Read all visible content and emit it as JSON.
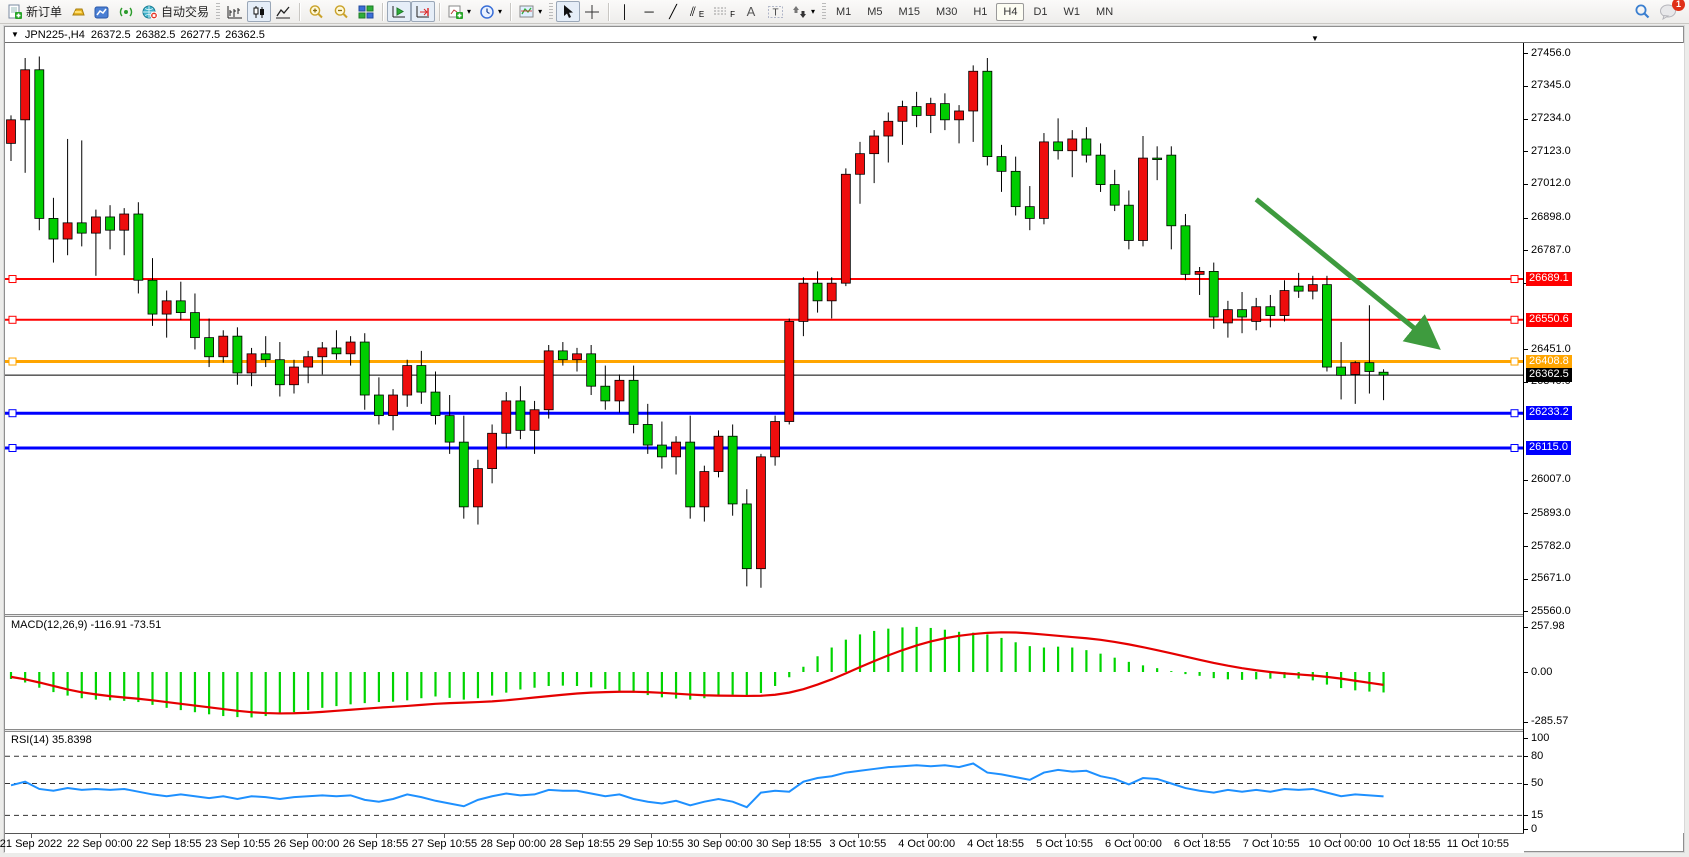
{
  "toolbar": {
    "new_order_label": "新订单",
    "autotrade_label": "自动交易",
    "text_tool_label": "A",
    "channel_tool_label": "E",
    "fibo_tool_label": "F",
    "timeframes": [
      "M1",
      "M5",
      "M15",
      "M30",
      "H1",
      "H4",
      "D1",
      "W1",
      "MN"
    ],
    "active_timeframe": "H4",
    "notification_badge": "1"
  },
  "chart": {
    "symbol_period": "JPN225-,H4",
    "open": "26372.5",
    "high": "26382.5",
    "low": "26277.5",
    "close": "26362.5"
  },
  "indicator_labels": {
    "macd": "MACD(12,26,9) -116.91 -73.51",
    "rsi": "RSI(14) 35.8398"
  },
  "price_axis": {
    "ticks": [
      {
        "label": "27456.0",
        "price": 27456.0
      },
      {
        "label": "27345.0",
        "price": 27345.0
      },
      {
        "label": "27234.0",
        "price": 27234.0
      },
      {
        "label": "27123.0",
        "price": 27123.0
      },
      {
        "label": "27012.0",
        "price": 27012.0
      },
      {
        "label": "26898.0",
        "price": 26898.0
      },
      {
        "label": "26787.0",
        "price": 26787.0
      },
      {
        "label": "26676.0",
        "price": 26676.0
      },
      {
        "label": "26451.0",
        "price": 26451.0
      },
      {
        "label": "26340.0",
        "price": 26340.0
      },
      {
        "label": "26007.0",
        "price": 26007.0
      },
      {
        "label": "25893.0",
        "price": 25893.0
      },
      {
        "label": "25782.0",
        "price": 25782.0
      },
      {
        "label": "25671.0",
        "price": 25671.0
      },
      {
        "label": "25560.0",
        "price": 25560.0
      }
    ],
    "macd_ticks": [
      {
        "label": "257.98",
        "value": 257.98
      },
      {
        "label": "0.00",
        "value": 0.0
      },
      {
        "label": "-285.57",
        "value": -285.57
      }
    ],
    "rsi_ticks": [
      {
        "label": "100",
        "value": 100
      },
      {
        "label": "80",
        "value": 80
      },
      {
        "label": "50",
        "value": 50
      },
      {
        "label": "15",
        "value": 15
      },
      {
        "label": "0",
        "value": 0
      }
    ]
  },
  "time_axis": {
    "labels": [
      "21 Sep 2022",
      "22 Sep 00:00",
      "22 Sep 18:55",
      "23 Sep 10:55",
      "26 Sep 00:00",
      "26 Sep 18:55",
      "27 Sep 10:55",
      "28 Sep 00:00",
      "28 Sep 18:55",
      "29 Sep 10:55",
      "30 Sep 00:00",
      "30 Sep 18:55",
      "3 Oct 10:55",
      "4 Oct 00:00",
      "4 Oct 18:55",
      "5 Oct 10:55",
      "6 Oct 00:00",
      "6 Oct 18:55",
      "7 Oct 10:55",
      "10 Oct 00:00",
      "10 Oct 18:55",
      "11 Oct 10:55"
    ]
  },
  "chart_data": {
    "type": "candlestick",
    "symbol": "JPN225-",
    "timeframe": "H4",
    "price_range": [
      25560.0,
      27456.0
    ],
    "colors": {
      "up_candle": "#ee0d0d",
      "down_candle": "#00cd00",
      "candle_border": "#000000",
      "macd_histogram": "#00d400",
      "macd_signal": "#e50000",
      "rsi_line": "#1e90ff",
      "resistance_line": "#ff0000",
      "pivot_line": "#ffa500",
      "support_line": "#0000ff",
      "current_price_line": "#000000",
      "arrow_annotation": "#3e9b3e"
    },
    "horizontal_lines": [
      {
        "price": 26689.1,
        "label": "26689.1",
        "color": "#ff0000",
        "width": 2
      },
      {
        "price": 26550.6,
        "label": "26550.6",
        "color": "#ff0000",
        "width": 2
      },
      {
        "price": 26408.8,
        "label": "26408.8",
        "color": "#ffa500",
        "width": 3
      },
      {
        "price": 26362.5,
        "label": "26362.5",
        "color": "#000000",
        "width": 1,
        "current": true
      },
      {
        "price": 26233.2,
        "label": "26233.2",
        "color": "#0000ff",
        "width": 3
      },
      {
        "price": 26115.0,
        "label": "26115.0",
        "color": "#0000ff",
        "width": 3
      }
    ],
    "arrow_annotation": {
      "from_x_bar": 88,
      "from_price": 26960,
      "to_x_bar": 100.5,
      "to_price": 26470
    },
    "candles": [
      [
        27150,
        27245,
        27090,
        27230
      ],
      [
        27230,
        27440,
        27050,
        27400
      ],
      [
        27400,
        27445,
        26855,
        26895
      ],
      [
        26895,
        26965,
        26745,
        26825
      ],
      [
        26825,
        27165,
        26770,
        26880
      ],
      [
        26880,
        27160,
        26800,
        26845
      ],
      [
        26845,
        26925,
        26700,
        26900
      ],
      [
        26900,
        26940,
        26790,
        26855
      ],
      [
        26855,
        26930,
        26770,
        26910
      ],
      [
        26910,
        26950,
        26640,
        26685
      ],
      [
        26685,
        26760,
        26530,
        26570
      ],
      [
        26570,
        26650,
        26490,
        26615
      ],
      [
        26615,
        26680,
        26550,
        26575
      ],
      [
        26575,
        26640,
        26450,
        26490
      ],
      [
        26490,
        26555,
        26390,
        26425
      ],
      [
        26425,
        26515,
        26405,
        26495
      ],
      [
        26495,
        26525,
        26330,
        26370
      ],
      [
        26370,
        26455,
        26325,
        26435
      ],
      [
        26435,
        26495,
        26390,
        26415
      ],
      [
        26415,
        26475,
        26290,
        26330
      ],
      [
        26330,
        26415,
        26300,
        26390
      ],
      [
        26390,
        26445,
        26335,
        26425
      ],
      [
        26425,
        26475,
        26365,
        26455
      ],
      [
        26455,
        26515,
        26415,
        26435
      ],
      [
        26435,
        26495,
        26395,
        26475
      ],
      [
        26475,
        26505,
        26245,
        26295
      ],
      [
        26295,
        26355,
        26195,
        26225
      ],
      [
        26225,
        26315,
        26175,
        26295
      ],
      [
        26295,
        26415,
        26255,
        26395
      ],
      [
        26395,
        26445,
        26265,
        26305
      ],
      [
        26305,
        26375,
        26195,
        26225
      ],
      [
        26225,
        26295,
        26095,
        26135
      ],
      [
        26135,
        26225,
        25875,
        25915
      ],
      [
        25915,
        26075,
        25855,
        26045
      ],
      [
        26045,
        26195,
        25995,
        26165
      ],
      [
        26165,
        26305,
        26115,
        26275
      ],
      [
        26275,
        26325,
        26145,
        26175
      ],
      [
        26175,
        26275,
        26095,
        26245
      ],
      [
        26245,
        26465,
        26215,
        26445
      ],
      [
        26445,
        26475,
        26395,
        26415
      ],
      [
        26415,
        26455,
        26375,
        26435
      ],
      [
        26435,
        26465,
        26295,
        26325
      ],
      [
        26325,
        26395,
        26245,
        26275
      ],
      [
        26275,
        26365,
        26235,
        26345
      ],
      [
        26345,
        26395,
        26165,
        26195
      ],
      [
        26195,
        26265,
        26095,
        26125
      ],
      [
        26125,
        26205,
        26045,
        26085
      ],
      [
        26085,
        26155,
        26025,
        26135
      ],
      [
        26135,
        26225,
        25875,
        25915
      ],
      [
        25915,
        26055,
        25865,
        26035
      ],
      [
        26035,
        26175,
        26015,
        26155
      ],
      [
        26155,
        26195,
        25885,
        25925
      ],
      [
        25925,
        25975,
        25645,
        25705
      ],
      [
        25705,
        26095,
        25640,
        26085
      ],
      [
        26085,
        26225,
        26055,
        26205
      ],
      [
        26205,
        26555,
        26195,
        26545
      ],
      [
        26545,
        26695,
        26495,
        26675
      ],
      [
        26675,
        26715,
        26575,
        26615
      ],
      [
        26615,
        26695,
        26555,
        26675
      ],
      [
        26675,
        27065,
        26665,
        27045
      ],
      [
        27045,
        27155,
        26945,
        27115
      ],
      [
        27115,
        27195,
        27015,
        27175
      ],
      [
        27175,
        27255,
        27085,
        27225
      ],
      [
        27225,
        27295,
        27145,
        27275
      ],
      [
        27275,
        27325,
        27205,
        27245
      ],
      [
        27245,
        27305,
        27185,
        27285
      ],
      [
        27285,
        27320,
        27195,
        27230
      ],
      [
        27230,
        27280,
        27150,
        27260
      ],
      [
        27260,
        27415,
        27155,
        27395
      ],
      [
        27395,
        27440,
        27075,
        27105
      ],
      [
        27105,
        27145,
        26985,
        27055
      ],
      [
        27055,
        27105,
        26905,
        26935
      ],
      [
        26935,
        27005,
        26855,
        26895
      ],
      [
        26895,
        27185,
        26875,
        27155
      ],
      [
        27155,
        27235,
        27095,
        27125
      ],
      [
        27125,
        27195,
        27035,
        27165
      ],
      [
        27165,
        27205,
        27085,
        27110
      ],
      [
        27110,
        27150,
        26985,
        27010
      ],
      [
        27010,
        27060,
        26920,
        26940
      ],
      [
        26940,
        26990,
        26790,
        26820
      ],
      [
        26820,
        27175,
        26800,
        27100
      ],
      [
        27100,
        27140,
        27025,
        27095
      ],
      [
        27110,
        27140,
        26790,
        26870
      ],
      [
        26870,
        26910,
        26685,
        26705
      ],
      [
        26705,
        26730,
        26635,
        26715
      ],
      [
        26715,
        26745,
        26520,
        26560
      ],
      [
        26540,
        26615,
        26490,
        26585
      ],
      [
        26585,
        26645,
        26505,
        26560
      ],
      [
        26545,
        26625,
        26515,
        26595
      ],
      [
        26595,
        26635,
        26525,
        26565
      ],
      [
        26565,
        26685,
        26545,
        26650
      ],
      [
        26665,
        26710,
        26625,
        26648
      ],
      [
        26648,
        26700,
        26620,
        26670
      ],
      [
        26670,
        26700,
        26375,
        26390
      ],
      [
        26390,
        26475,
        26280,
        26362
      ],
      [
        26365,
        26410,
        26265,
        26405
      ],
      [
        26405,
        26600,
        26300,
        26375
      ],
      [
        26372.5,
        26382.5,
        26277.5,
        26362.5
      ]
    ],
    "indicators": [
      {
        "name": "MACD(12,26,9)",
        "value_main": -116.91,
        "value_signal": -73.51,
        "range": [
          -285.57,
          257.98
        ],
        "histogram": [
          -40,
          -60,
          -90,
          -115,
          -135,
          -150,
          -158,
          -162,
          -165,
          -172,
          -188,
          -205,
          -218,
          -230,
          -242,
          -252,
          -258,
          -260,
          -252,
          -242,
          -230,
          -218,
          -205,
          -195,
          -185,
          -178,
          -172,
          -170,
          -162,
          -150,
          -140,
          -148,
          -158,
          -150,
          -135,
          -118,
          -100,
          -90,
          -80,
          -78,
          -80,
          -88,
          -98,
          -108,
          -118,
          -132,
          -145,
          -152,
          -158,
          -150,
          -135,
          -130,
          -138,
          -120,
          -80,
          -30,
          30,
          90,
          140,
          185,
          215,
          235,
          248,
          255,
          258,
          252,
          242,
          230,
          225,
          215,
          195,
          170,
          148,
          140,
          145,
          140,
          125,
          105,
          82,
          58,
          38,
          22,
          5,
          -12,
          -22,
          -35,
          -42,
          -45,
          -42,
          -38,
          -35,
          -38,
          -48,
          -72,
          -92,
          -105,
          -112,
          -117
        ],
        "signal": [
          -28,
          -42,
          -60,
          -80,
          -100,
          -116,
          -128,
          -138,
          -146,
          -153,
          -162,
          -172,
          -182,
          -192,
          -202,
          -212,
          -222,
          -230,
          -235,
          -237,
          -236,
          -233,
          -228,
          -222,
          -216,
          -210,
          -204,
          -199,
          -194,
          -188,
          -182,
          -178,
          -175,
          -172,
          -168,
          -162,
          -154,
          -146,
          -138,
          -130,
          -123,
          -118,
          -115,
          -113,
          -113,
          -115,
          -119,
          -124,
          -129,
          -133,
          -135,
          -136,
          -137,
          -136,
          -130,
          -118,
          -98,
          -72,
          -42,
          -8,
          28,
          62,
          95,
          125,
          152,
          175,
          193,
          207,
          217,
          224,
          227,
          226,
          221,
          214,
          207,
          200,
          193,
          184,
          172,
          158,
          142,
          125,
          107,
          88,
          70,
          52,
          36,
          22,
          10,
          0,
          -8,
          -14,
          -20,
          -28,
          -38,
          -50,
          -62,
          -73.5
        ]
      },
      {
        "name": "RSI(14)",
        "value": 35.8398,
        "levels": [
          80,
          50,
          15
        ],
        "range": [
          0,
          100
        ],
        "values": [
          48,
          52,
          44,
          42,
          45,
          43,
          44,
          43,
          44,
          41,
          38,
          36,
          38,
          36,
          34,
          36,
          33,
          36,
          35,
          33,
          35,
          36,
          37,
          36,
          37,
          32,
          30,
          33,
          38,
          35,
          31,
          28,
          25,
          32,
          36,
          39,
          37,
          38,
          43,
          42,
          42,
          39,
          36,
          38,
          33,
          30,
          28,
          31,
          26,
          30,
          33,
          30,
          24,
          40,
          42,
          41,
          52,
          56,
          58,
          62,
          64,
          66,
          68,
          69,
          70,
          69,
          70,
          68,
          72,
          62,
          60,
          57,
          54,
          62,
          65,
          63,
          64,
          58,
          55,
          49,
          56,
          55,
          50,
          45,
          42,
          40,
          43,
          41,
          43,
          41,
          44,
          43,
          44,
          40,
          36,
          38,
          37,
          35.8
        ]
      }
    ]
  }
}
